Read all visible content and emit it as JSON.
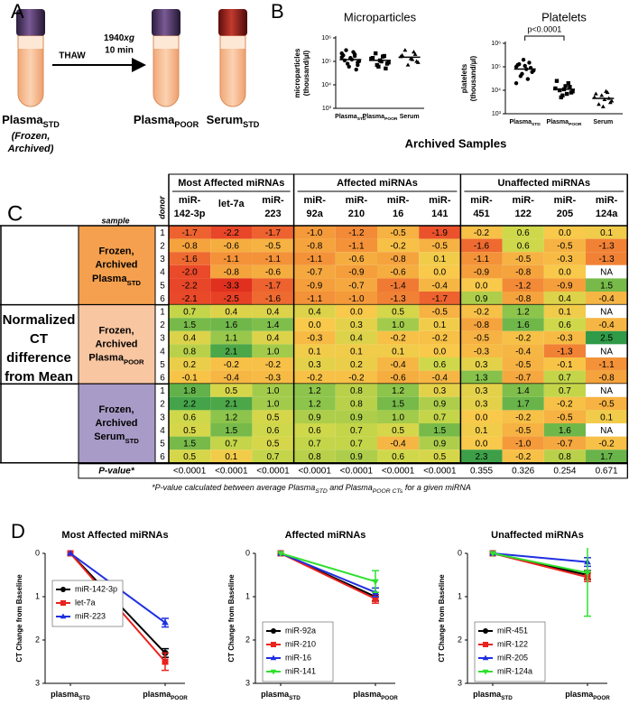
{
  "panel_a": {
    "letter": "A",
    "thaw": "THAW",
    "spin": [
      {
        "main": "1940",
        "italic": "xg"
      },
      "10 min"
    ],
    "tube1": {
      "main": "Plasma",
      "sub": "STD"
    },
    "tube1_note": [
      "(Frozen,",
      "Archived)"
    ],
    "tube2": {
      "main": "Plasma",
      "sub": "POOR"
    },
    "tube3": {
      "main": "Serum",
      "sub": "STD"
    }
  },
  "panel_b": {
    "letter": "B",
    "caption": "Archived Samples"
  },
  "panel_d": {
    "letter": "D"
  },
  "chart_data": [
    {
      "type": "strip",
      "title": "Microparticles",
      "ylabel": [
        "microparticles",
        "(thousand/µl)"
      ],
      "log": true,
      "ylim": [
        1000,
        1000000
      ],
      "yticks": [
        {
          "value": 1000,
          "label": "10³"
        },
        {
          "value": 10000,
          "label": "10⁴"
        },
        {
          "value": 100000,
          "label": "10⁵"
        },
        {
          "value": 1000000,
          "label": "10⁶"
        }
      ],
      "markers": [
        "circle",
        "square",
        "triangle"
      ],
      "groups": [
        {
          "label": {
            "main": "Plasma",
            "sub": "STD"
          },
          "median": 120000,
          "values": [
            150000,
            90000,
            200000,
            120000,
            60000,
            300000,
            180000,
            100000,
            45000,
            250000,
            140000,
            80000,
            110000,
            220000,
            70000,
            170000
          ]
        },
        {
          "label": {
            "main": "Plasma",
            "sub": "POOR"
          },
          "median": 110000,
          "values": [
            130000,
            80000,
            170000,
            100000,
            60000,
            220000,
            140000,
            90000,
            50000,
            160000,
            110000,
            70000
          ]
        },
        {
          "label": {
            "main": "Serum"
          },
          "median": 150000,
          "values": [
            160000,
            100000,
            250000,
            130000,
            70000,
            300000,
            180000,
            90000,
            200000,
            120000
          ]
        }
      ]
    },
    {
      "type": "strip",
      "title": "Platelets",
      "ylabel": [
        "platelets",
        "(thousand/µl)"
      ],
      "log": true,
      "annotation": "p<0.0001",
      "ylim": [
        1000,
        1000000
      ],
      "yticks": [
        {
          "value": 1000,
          "label": "10³"
        },
        {
          "value": 10000,
          "label": "10⁴"
        },
        {
          "value": 100000,
          "label": "10⁵"
        },
        {
          "value": 1000000,
          "label": "10⁶"
        }
      ],
      "markers": [
        "circle",
        "square",
        "triangle"
      ],
      "groups": [
        {
          "label": {
            "main": "Plasma",
            "sub": "STD"
          },
          "median": 80000,
          "values": [
            100000,
            60000,
            150000,
            80000,
            200000,
            40000,
            120000,
            70000,
            90000,
            30000,
            110000,
            50000,
            130000,
            20000
          ]
        },
        {
          "label": {
            "main": "Plasma",
            "sub": "POOR"
          },
          "median": 11000,
          "values": [
            12000,
            8000,
            20000,
            15000,
            6000,
            10000,
            25000,
            9000,
            14000,
            7000,
            11000,
            5000
          ]
        },
        {
          "label": {
            "main": "Serum"
          },
          "median": 4500,
          "values": [
            5000,
            3000,
            8000,
            4000,
            6000,
            2500,
            7000,
            3500,
            4500,
            9000,
            2000
          ]
        }
      ]
    },
    {
      "type": "line",
      "title": "Most Affected miRNAs",
      "ylabel": "CT Change from Baseline",
      "y_inverted": true,
      "legend": "center left",
      "categories": [
        {
          "main": "plasma",
          "sub": "STD"
        },
        {
          "main": "plasma",
          "sub": "POOR"
        }
      ],
      "ylim": [
        0,
        3
      ],
      "yticks": [
        0,
        1,
        2,
        3
      ],
      "series": [
        {
          "name": "miR-142-3p",
          "color": "#000000",
          "marker": "circle",
          "values": [
            0,
            2.3
          ],
          "errors": [
            null,
            0.1
          ]
        },
        {
          "name": "let-7a",
          "color": "#e8231e",
          "marker": "square",
          "values": [
            0,
            2.5
          ],
          "errors": [
            null,
            0.2
          ]
        },
        {
          "name": "miR-223",
          "color": "#1f2fe0",
          "marker": "triangle",
          "values": [
            0,
            1.6
          ],
          "errors": [
            null,
            0.1
          ]
        }
      ]
    },
    {
      "type": "line",
      "title": "Affected miRNAs",
      "ylabel": "CT Change from Baseline",
      "y_inverted": true,
      "legend": "lower left",
      "categories": [
        {
          "main": "plasma",
          "sub": "STD"
        },
        {
          "main": "plasma",
          "sub": "POOR"
        }
      ],
      "ylim": [
        0,
        3
      ],
      "yticks": [
        0,
        1,
        2,
        3
      ],
      "series": [
        {
          "name": "miR-92a",
          "color": "#000000",
          "marker": "circle",
          "values": [
            0,
            1.0
          ],
          "errors": [
            null,
            0.1
          ]
        },
        {
          "name": "miR-210",
          "color": "#e8231e",
          "marker": "square",
          "values": [
            0,
            1.05
          ],
          "errors": [
            null,
            0.1
          ]
        },
        {
          "name": "miR-16",
          "color": "#1f2fe0",
          "marker": "triangle",
          "values": [
            0,
            0.9
          ],
          "errors": [
            null,
            0.1
          ]
        },
        {
          "name": "miR-141",
          "color": "#2fe02f",
          "marker": "triangle-down",
          "values": [
            0,
            0.65
          ],
          "errors": [
            null,
            0.25
          ]
        }
      ]
    },
    {
      "type": "line",
      "title": "Unaffected miRNAs",
      "ylabel": "CT Change from Baseline",
      "y_inverted": true,
      "legend": "lower left",
      "categories": [
        {
          "main": "plasma",
          "sub": "STD"
        },
        {
          "main": "plasma",
          "sub": "POOR"
        }
      ],
      "ylim": [
        0,
        3
      ],
      "yticks": [
        0,
        1,
        2,
        3
      ],
      "series": [
        {
          "name": "miR-451",
          "color": "#000000",
          "marker": "circle",
          "values": [
            0,
            0.5
          ],
          "errors": [
            null,
            0.1
          ]
        },
        {
          "name": "miR-122",
          "color": "#e8231e",
          "marker": "square",
          "values": [
            0,
            0.55
          ],
          "errors": [
            null,
            0.1
          ]
        },
        {
          "name": "miR-205",
          "color": "#1f2fe0",
          "marker": "triangle",
          "values": [
            0,
            0.2
          ],
          "errors": [
            null,
            0.1
          ]
        },
        {
          "name": "miR-124a",
          "color": "#2fe02f",
          "marker": "triangle-down",
          "values": [
            0,
            0.45
          ],
          "errors": [
            null,
            1.0
          ]
        }
      ]
    }
  ],
  "table": {
    "letter": "C",
    "side_label": [
      "Normalized",
      "CT",
      "difference",
      "from Mean"
    ],
    "sample_header": "sample",
    "donor_header": "donor",
    "column_groups": [
      {
        "name": "Most Affected miRNAs",
        "columns": [
          [
            "miR-",
            "142-3p"
          ],
          [
            "let-7a"
          ],
          [
            "miR-",
            "223"
          ]
        ]
      },
      {
        "name": "Affected miRNAs",
        "columns": [
          [
            "miR-",
            "92a"
          ],
          [
            "miR-",
            "210"
          ],
          [
            "miR-",
            "16"
          ],
          [
            "miR-",
            "141"
          ]
        ]
      },
      {
        "name": "Unaffected miRNAs",
        "columns": [
          [
            "miR-",
            "451"
          ],
          [
            "miR-",
            "122"
          ],
          [
            "miR-",
            "205"
          ],
          [
            "miR-",
            "124a"
          ]
        ]
      }
    ],
    "row_groups": [
      {
        "name": [
          "Frozen,",
          "Archived",
          {
            "main": "Plasma",
            "sub": "STD"
          }
        ],
        "color": "#f5a04e",
        "donors": [
          1,
          2,
          3,
          4,
          5,
          6
        ],
        "rows": [
          [
            "-1.7",
            "-2.2",
            "-1.7",
            "-1.0",
            "-1.2",
            "-0.5",
            "-1.9",
            "-0.2",
            "0.6",
            "0.0",
            "0.1"
          ],
          [
            "-0.8",
            "-0.6",
            "-0.5",
            "-0.8",
            "-1.1",
            "-0.2",
            "-0.5",
            "-1.6",
            "0.6",
            "-0.5",
            "-1.3"
          ],
          [
            "-1.6",
            "-1.1",
            "-1.1",
            "-1.1",
            "-0.6",
            "-0.8",
            "0.1",
            "-1.1",
            "-0.5",
            "-0.3",
            "-1.3"
          ],
          [
            "-2.0",
            "-0.8",
            "-0.6",
            "-0.7",
            "-0.9",
            "-0.6",
            "0.0",
            "-0.9",
            "-0.8",
            "0.0",
            "NA"
          ],
          [
            "-2.2",
            "-3.3",
            "-1.7",
            "-0.9",
            "-0.7",
            "-1.4",
            "-0.4",
            "0.0",
            "-1.2",
            "-0.9",
            "1.5"
          ],
          [
            "-2.1",
            "-2.5",
            "-1.6",
            "-1.1",
            "-1.0",
            "-1.3",
            "-1.7",
            "0.9",
            "-0.8",
            "0.4",
            "-0.4"
          ]
        ]
      },
      {
        "name": [
          "Frozen,",
          "Archived",
          {
            "main": "Plasma",
            "sub": "POOR"
          }
        ],
        "color": "#f9c6a2",
        "donors": [
          1,
          2,
          3,
          4,
          5,
          6
        ],
        "rows": [
          [
            "0.7",
            "0.4",
            "0.4",
            "0.4",
            "0.0",
            "0.5",
            "-0.5",
            "-0.2",
            "1.2",
            "0.1",
            "NA"
          ],
          [
            "1.5",
            "1.6",
            "1.4",
            "0.0",
            "0.3",
            "1.0",
            "0.1",
            "-0.8",
            "1.6",
            "0.6",
            "-0.4"
          ],
          [
            "0.4",
            "1.1",
            "0.4",
            "-0.3",
            "0.4",
            "-0.2",
            "-0.2",
            "-0.5",
            "-0.2",
            "-0.3",
            "2.5"
          ],
          [
            "0.8",
            "2.1",
            "1.0",
            "0.1",
            "0.1",
            "0.1",
            "0.0",
            "-0.3",
            "-0.4",
            "-1.3",
            "NA"
          ],
          [
            "0.2",
            "-0.2",
            "-0.2",
            "0.3",
            "0.2",
            "-0.4",
            "0.6",
            "0.3",
            "-0.5",
            "-0.1",
            "-1.1"
          ],
          [
            "-0.1",
            "-0.4",
            "-0.3",
            "-0.2",
            "-0.2",
            "-0.6",
            "-0.4",
            "1.3",
            "-0.7",
            "0.7",
            "-0.8"
          ]
        ]
      },
      {
        "name": [
          "Frozen,",
          "Archived",
          {
            "main": "Serum",
            "sub": "STD"
          }
        ],
        "color": "#a89bc7",
        "donors": [
          1,
          2,
          3,
          4,
          5,
          6
        ],
        "rows": [
          [
            "1.8",
            "0.5",
            "1.0",
            "1.2",
            "0.8",
            "1.2",
            "0.3",
            "0.3",
            "1.4",
            "0.7",
            "NA"
          ],
          [
            "2.2",
            "2.1",
            "1.0",
            "1.2",
            "0.8",
            "1.5",
            "0.9",
            "0.3",
            "1.7",
            "-0.2",
            "-0.5"
          ],
          [
            "0.6",
            "1.2",
            "0.5",
            "0.9",
            "0.9",
            "1.0",
            "0.7",
            "0.0",
            "-0.2",
            "-0.5",
            "0.1"
          ],
          [
            "0.5",
            "1.5",
            "0.6",
            "0.6",
            "0.7",
            "0.5",
            "1.5",
            "0.1",
            "-0.5",
            "1.6",
            "NA"
          ],
          [
            "1.5",
            "0.7",
            "0.5",
            "0.7",
            "0.7",
            "-0.4",
            "0.9",
            "0.0",
            "-1.0",
            "-0.7",
            "-0.2"
          ],
          [
            "0.5",
            "0.1",
            "0.7",
            "0.8",
            "0.9",
            "0.6",
            "0.5",
            "2.3",
            "-0.2",
            "0.8",
            "1.7"
          ]
        ]
      }
    ],
    "pvalue_label": "P-value*",
    "pvalues": [
      "<0.0001",
      "<0.0001",
      "<0.0001",
      "<0.0001",
      "<0.0001",
      "<0.0001",
      "<0.0001",
      "0.355",
      "0.326",
      "0.254",
      "0.671"
    ],
    "footnote": [
      {
        "text": "*P-value calculated between average Plasma"
      },
      {
        "sub": "STD"
      },
      {
        "text": " and Plasma"
      },
      {
        "sub": "POOR CTs"
      },
      {
        "text": " for a given miRNA"
      }
    ]
  }
}
